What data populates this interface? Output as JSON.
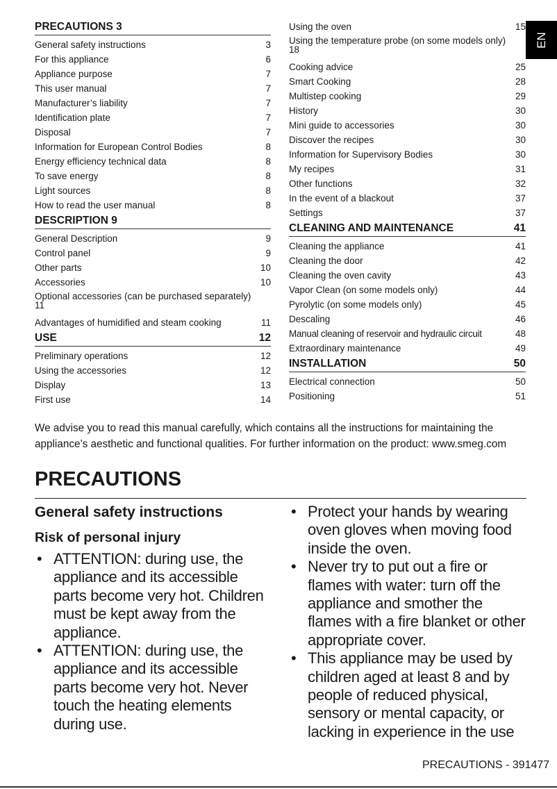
{
  "toc": {
    "left": [
      {
        "type": "header",
        "title": "PRECAUTIONS 3",
        "page": ""
      },
      {
        "title": "General safety instructions",
        "page": "3"
      },
      {
        "title": "For this appliance",
        "page": "6"
      },
      {
        "title": "Appliance purpose",
        "page": "7"
      },
      {
        "title": "This user manual",
        "page": "7"
      },
      {
        "title": "Manufacturer’s liability",
        "page": "7"
      },
      {
        "title": "Identification plate",
        "page": "7"
      },
      {
        "title": "Disposal",
        "page": "7"
      },
      {
        "title": "Information for European Control Bodies",
        "page": "8"
      },
      {
        "title": "Energy efficiency technical data",
        "page": "8"
      },
      {
        "title": "To save energy",
        "page": "8"
      },
      {
        "title": "Light sources",
        "page": "8"
      },
      {
        "title": "How to read the user manual",
        "page": "8"
      },
      {
        "type": "header",
        "title": "DESCRIPTION 9",
        "page": ""
      },
      {
        "title": "General Description",
        "page": "9"
      },
      {
        "title": "Control panel",
        "page": "9"
      },
      {
        "title": "Other parts",
        "page": "10"
      },
      {
        "title": "Accessories",
        "page": "10"
      },
      {
        "type": "wrap",
        "title": "Optional accessories (can be purchased separately)",
        "page": "11"
      },
      {
        "title": "Advantages of humidified and steam cooking",
        "page": "11"
      },
      {
        "type": "header",
        "title": "USE",
        "page": "12"
      },
      {
        "title": "Preliminary operations",
        "page": "12"
      },
      {
        "title": "Using the accessories",
        "page": "12"
      },
      {
        "title": "Display",
        "page": "13"
      },
      {
        "title": "First use",
        "page": "14"
      }
    ],
    "right": [
      {
        "title": "Using the oven",
        "page": "15"
      },
      {
        "type": "wrap",
        "title": "Using the temperature probe (on some models only)",
        "page": "18"
      },
      {
        "title": "Cooking advice",
        "page": "25"
      },
      {
        "title": "Smart Cooking",
        "page": "28"
      },
      {
        "title": "Multistep cooking",
        "page": "29"
      },
      {
        "title": "History",
        "page": "30"
      },
      {
        "title": "Mini guide to accessories",
        "page": "30"
      },
      {
        "title": "Discover the recipes",
        "page": "30"
      },
      {
        "title": "Information for Supervisory Bodies",
        "page": "30"
      },
      {
        "title": "My recipes",
        "page": "31"
      },
      {
        "title": "Other functions",
        "page": "32"
      },
      {
        "title": "In the event of a blackout",
        "page": "37"
      },
      {
        "title": "Settings",
        "page": "37"
      },
      {
        "type": "header",
        "title": "CLEANING AND MAINTENANCE",
        "page": "41"
      },
      {
        "title": "Cleaning the appliance",
        "page": "41"
      },
      {
        "title": "Cleaning the door",
        "page": "42"
      },
      {
        "title": "Cleaning the oven cavity",
        "page": "43"
      },
      {
        "title": "Vapor Clean (on some models only)",
        "page": "44"
      },
      {
        "title": "Pyrolytic (on some models only)",
        "page": "45"
      },
      {
        "title": "Descaling",
        "page": "46"
      },
      {
        "type": "inline",
        "title": "Manual cleaning of reservoir and hydraulic circuit",
        "page": "48"
      },
      {
        "title": "Extraordinary maintenance",
        "page": "49"
      },
      {
        "type": "header",
        "title": "INSTALLATION",
        "page": "50"
      },
      {
        "title": "Electrical connection",
        "page": "50"
      },
      {
        "title": "Positioning",
        "page": "51"
      }
    ]
  },
  "language_tab": "EN",
  "intro": "We advise you to read this manual carefully, which contains all the instructions for maintaining the appliance’s aesthetic and functional qualities. For further information on the product: www.smeg.com",
  "section": {
    "title": "PRECAUTIONS",
    "subtitle": "General safety instructions",
    "subsubtitle": "Risk of personal injury",
    "left_bullets": [
      "ATTENTION: during use, the appliance and its accessible parts become very hot. Children must be kept away from the appliance.",
      "ATTENTION: during use, the appliance and its accessible parts become very hot. Never touch the heating elements during use."
    ],
    "right_bullets": [
      "Protect your hands by wearing oven gloves when moving food inside the oven.",
      "Never try to put out a fire or flames with water: turn off the appliance and smother the flames with a fire blanket or other appropriate cover.",
      "This appliance may be used by children aged at least 8 and by people of reduced physical, sensory or mental capacity, or lacking in experience in the use"
    ]
  },
  "footer": "PRECAUTIONS - 391477"
}
